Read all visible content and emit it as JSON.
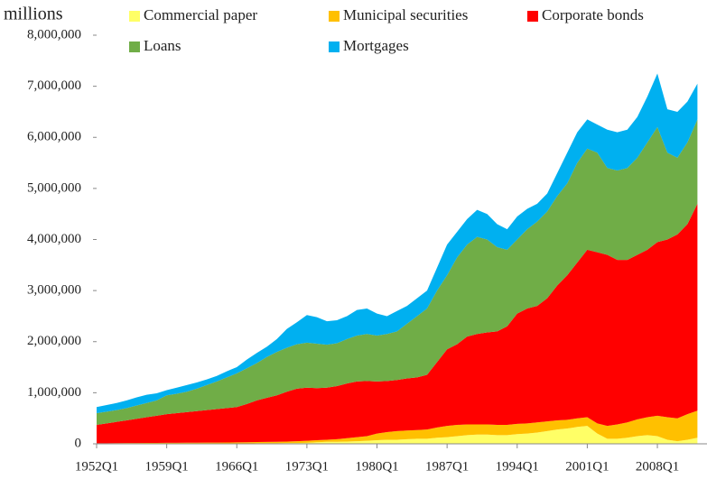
{
  "chart_data": {
    "type": "stacked-area",
    "ylabel": "millions",
    "categories": [
      "1952Q1",
      null,
      null,
      null,
      null,
      null,
      null,
      "1959Q1",
      null,
      null,
      null,
      null,
      null,
      null,
      "1966Q1",
      null,
      null,
      null,
      null,
      null,
      null,
      "1973Q1",
      null,
      null,
      null,
      null,
      null,
      null,
      "1980Q1",
      null,
      null,
      null,
      null,
      null,
      null,
      "1987Q1",
      null,
      null,
      null,
      null,
      null,
      null,
      "1994Q1",
      null,
      null,
      null,
      null,
      null,
      null,
      "2001Q1",
      null,
      null,
      null,
      null,
      null,
      null,
      "2008Q1",
      null,
      null,
      null,
      null
    ],
    "ylim": [
      0,
      8000000
    ],
    "yticks": [
      0,
      {
        "value": 1000000,
        "label": "1,000,000"
      },
      {
        "value": 2000000,
        "label": "2,000,000"
      },
      {
        "value": 3000000,
        "label": "3,000,000"
      },
      {
        "value": 4000000,
        "label": "4,000,000"
      },
      {
        "value": 5000000,
        "label": "5,000,000"
      },
      {
        "value": 6000000,
        "label": "6,000,000"
      },
      {
        "value": 7000000,
        "label": "7,000,000"
      },
      {
        "value": 8000000,
        "label": "8,000,000"
      }
    ],
    "series": [
      {
        "name": "Commercial paper",
        "color": "#ffff66",
        "values": [
          5000,
          5000,
          5000,
          5000,
          5000,
          5000,
          5000,
          5000,
          5000,
          5000,
          5000,
          5000,
          5000,
          5000,
          5000,
          5000,
          10000,
          10000,
          10000,
          15000,
          15000,
          20000,
          30000,
          40000,
          40000,
          45000,
          50000,
          60000,
          70000,
          80000,
          80000,
          90000,
          100000,
          100000,
          120000,
          130000,
          150000,
          170000,
          180000,
          180000,
          170000,
          170000,
          190000,
          200000,
          220000,
          250000,
          280000,
          300000,
          330000,
          350000,
          200000,
          100000,
          100000,
          120000,
          150000,
          170000,
          150000,
          80000,
          50000,
          80000,
          120000
        ]
      },
      {
        "name": "Municipal securities",
        "color": "#ffc000",
        "values": [
          5000,
          7000,
          9000,
          10000,
          11000,
          12000,
          13000,
          15000,
          15000,
          17000,
          17000,
          19000,
          20000,
          21000,
          23000,
          25000,
          25000,
          28000,
          30000,
          30000,
          35000,
          40000,
          40000,
          40000,
          50000,
          65000,
          80000,
          90000,
          130000,
          150000,
          170000,
          170000,
          170000,
          180000,
          200000,
          220000,
          220000,
          210000,
          200000,
          200000,
          200000,
          200000,
          200000,
          200000,
          200000,
          190000,
          180000,
          170000,
          170000,
          170000,
          200000,
          250000,
          280000,
          300000,
          330000,
          350000,
          400000,
          440000,
          450000,
          500000,
          530000
        ]
      },
      {
        "name": "Corporate bonds",
        "color": "#ff0000",
        "values": [
          360000,
          388000,
          416000,
          445000,
          474000,
          503000,
          532000,
          560000,
          580000,
          598000,
          618000,
          636000,
          655000,
          674000,
          692000,
          750000,
          815000,
          862000,
          910000,
          975000,
          1030000,
          1040000,
          1020000,
          1020000,
          1040000,
          1070000,
          1090000,
          1080000,
          1020000,
          1000000,
          1000000,
          1020000,
          1030000,
          1070000,
          1280000,
          1500000,
          1580000,
          1720000,
          1770000,
          1800000,
          1830000,
          1930000,
          2160000,
          2250000,
          2280000,
          2410000,
          2640000,
          2830000,
          3050000,
          3280000,
          3350000,
          3350000,
          3220000,
          3180000,
          3220000,
          3280000,
          3400000,
          3480000,
          3600000,
          3720000,
          4050000
        ]
      },
      {
        "name": "Loans",
        "color": "#70ad47",
        "values": [
          230000,
          230000,
          230000,
          240000,
          260000,
          280000,
          300000,
          370000,
          380000,
          400000,
          440000,
          490000,
          540000,
          600000,
          660000,
          700000,
          730000,
          800000,
          850000,
          860000,
          870000,
          880000,
          870000,
          840000,
          840000,
          870000,
          900000,
          920000,
          900000,
          920000,
          950000,
          1070000,
          1200000,
          1300000,
          1400000,
          1450000,
          1700000,
          1800000,
          1900000,
          1820000,
          1650000,
          1500000,
          1450000,
          1550000,
          1650000,
          1700000,
          1750000,
          1800000,
          1950000,
          1980000,
          1950000,
          1700000,
          1750000,
          1800000,
          1900000,
          2100000,
          2250000,
          1700000,
          1500000,
          1600000,
          1650000
        ]
      },
      {
        "name": "Mortgages",
        "color": "#00b0f0",
        "values": [
          120000,
          130000,
          140000,
          150000,
          160000,
          160000,
          140000,
          100000,
          120000,
          130000,
          120000,
          110000,
          110000,
          120000,
          120000,
          170000,
          200000,
          200000,
          250000,
          370000,
          430000,
          540000,
          520000,
          460000,
          450000,
          450000,
          500000,
          500000,
          430000,
          350000,
          400000,
          350000,
          350000,
          350000,
          450000,
          600000,
          500000,
          500000,
          530000,
          500000,
          450000,
          400000,
          450000,
          400000,
          350000,
          350000,
          450000,
          600000,
          600000,
          570000,
          550000,
          750000,
          750000,
          750000,
          800000,
          900000,
          1050000,
          850000,
          900000,
          800000,
          700000
        ]
      }
    ]
  }
}
